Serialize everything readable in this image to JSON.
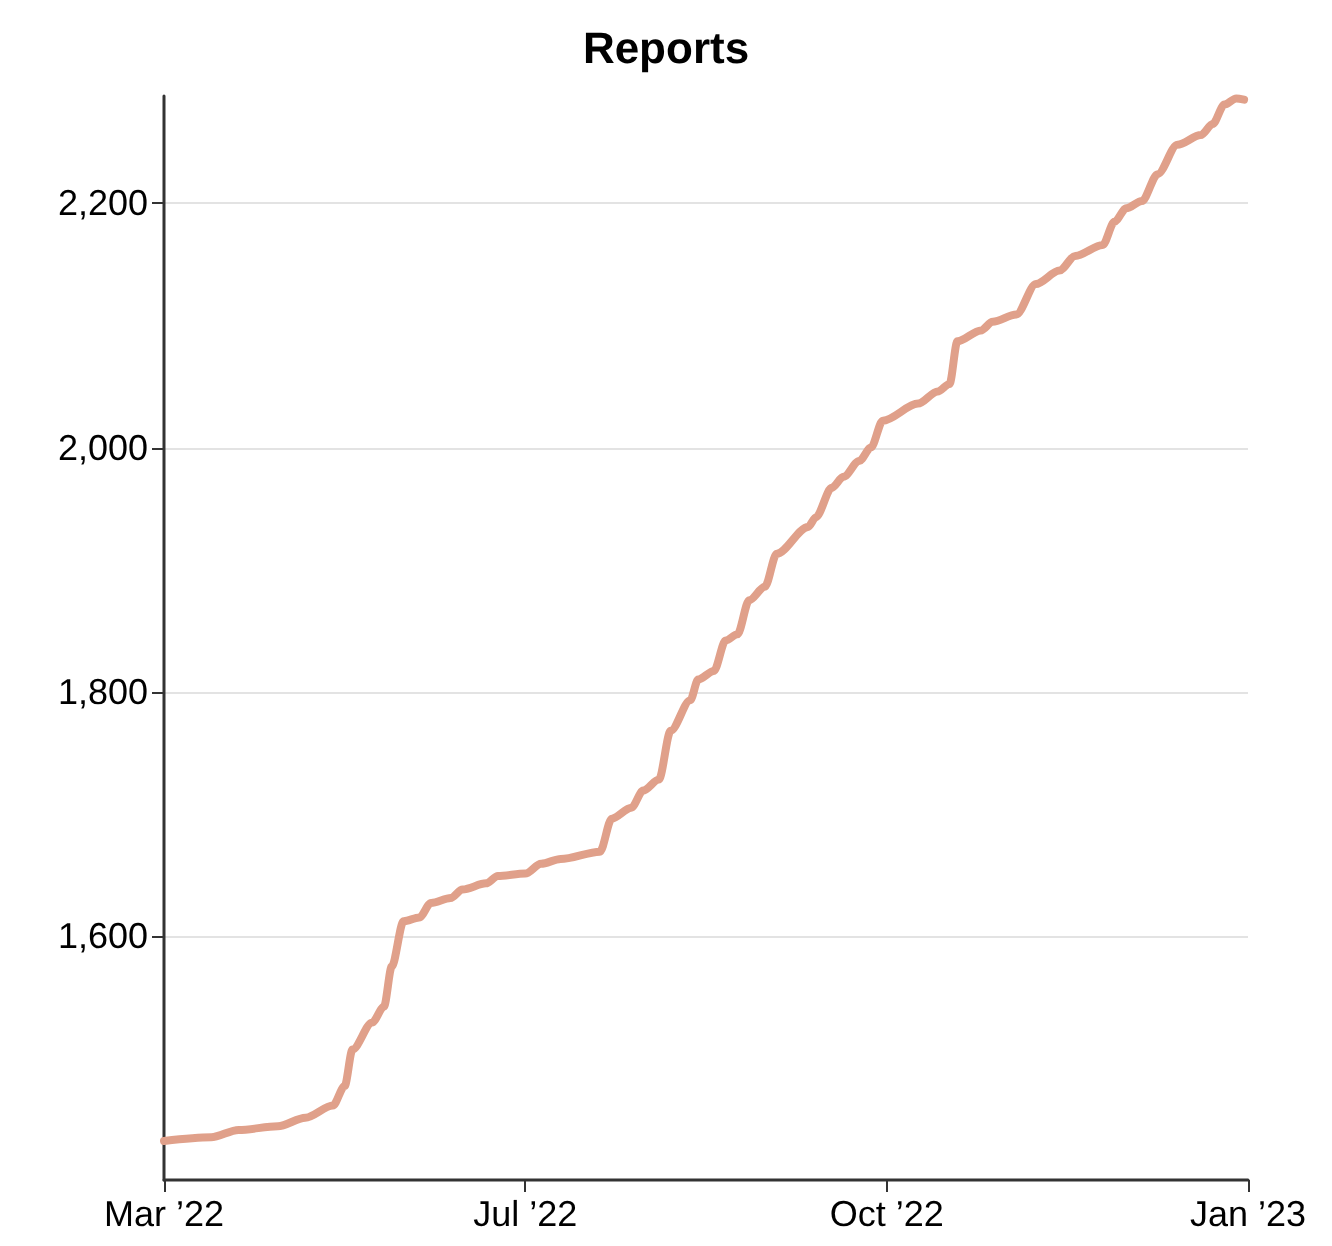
{
  "chart_data": {
    "type": "line",
    "title": "Reports",
    "x": [
      "2022-03-31",
      "2022-04-12",
      "2022-04-19",
      "2022-04-29",
      "2022-05-06",
      "2022-05-13",
      "2022-05-16",
      "2022-05-18",
      "2022-05-23",
      "2022-05-26",
      "2022-05-28",
      "2022-05-31",
      "2022-06-04",
      "2022-06-07",
      "2022-06-12",
      "2022-06-15",
      "2022-06-21",
      "2022-06-24",
      "2022-07-01",
      "2022-07-05",
      "2022-07-10",
      "2022-07-20",
      "2022-07-23",
      "2022-07-28",
      "2022-07-31",
      "2022-08-04",
      "2022-08-07",
      "2022-08-12",
      "2022-08-14",
      "2022-08-18",
      "2022-08-21",
      "2022-08-24",
      "2022-08-27",
      "2022-08-31",
      "2022-09-03",
      "2022-09-11",
      "2022-09-13",
      "2022-09-17",
      "2022-09-20",
      "2022-09-24",
      "2022-09-27",
      "2022-09-30",
      "2022-10-09",
      "2022-10-14",
      "2022-10-17",
      "2022-10-19",
      "2022-10-25",
      "2022-10-28",
      "2022-11-03",
      "2022-11-08",
      "2022-11-14",
      "2022-11-18",
      "2022-11-25",
      "2022-11-28",
      "2022-12-01",
      "2022-12-05",
      "2022-12-09",
      "2022-12-14",
      "2022-12-20",
      "2022-12-23",
      "2022-12-26",
      "2022-12-29",
      "2022-12-31"
    ],
    "series": [
      {
        "color": "#e0a08a",
        "values": [
          1432,
          1435,
          1441,
          1444,
          1451,
          1461,
          1477,
          1507,
          1529,
          1542,
          1575,
          1612,
          1615,
          1627,
          1631,
          1638,
          1643,
          1649,
          1651,
          1659,
          1663,
          1669,
          1696,
          1705,
          1719,
          1728,
          1768,
          1793,
          1810,
          1817,
          1842,
          1847,
          1875,
          1886,
          1913,
          1935,
          1943,
          1967,
          1976,
          1989,
          2000,
          2022,
          2036,
          2046,
          2052,
          2087,
          2096,
          2103,
          2109,
          2134,
          2145,
          2157,
          2166,
          2185,
          2196,
          2202,
          2224,
          2248,
          2256,
          2265,
          2281,
          2286,
          2285
        ]
      }
    ],
    "xlim": [
      "2022-03-31",
      "2023-01-01"
    ],
    "xticks": [
      {
        "value": "2022-03-31",
        "label": "Mar ’22"
      },
      {
        "value": "2022-07-01",
        "label": "Jul ’22"
      },
      {
        "value": "2022-10-01",
        "label": "Oct ’22"
      },
      {
        "value": "2023-01-01",
        "label": "Jan ’23"
      }
    ],
    "ylim": [
      1400,
      2288
    ],
    "yticks": [
      {
        "value": 1600,
        "label": "1,600"
      },
      {
        "value": 1800,
        "label": "1,800"
      },
      {
        "value": 2000,
        "label": "2,000"
      },
      {
        "value": 2200,
        "label": "2,200"
      }
    ],
    "grid": "y",
    "marker": "none",
    "line_style": "solid"
  }
}
